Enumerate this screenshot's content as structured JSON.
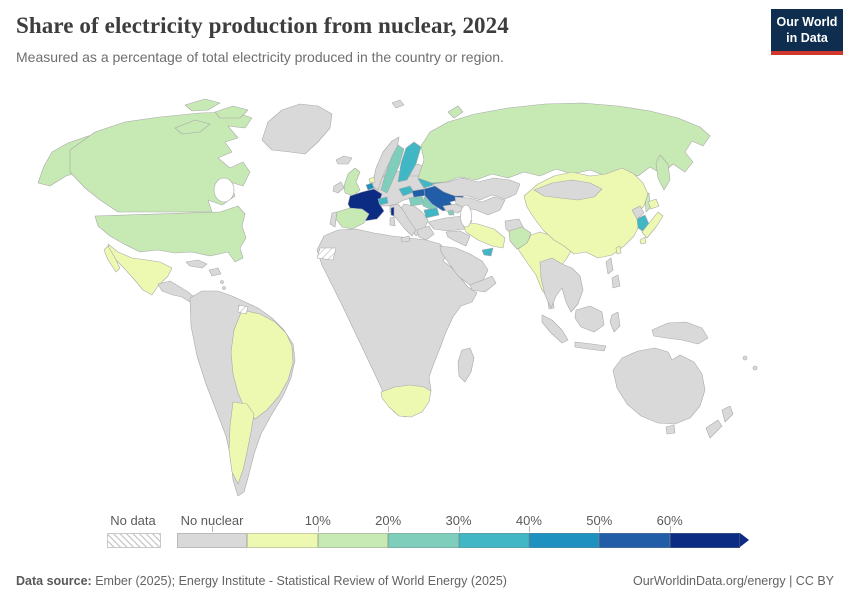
{
  "header": {
    "title": "Share of electricity production from nuclear, 2024",
    "subtitle": "Measured as a percentage of total electricity produced in the country or region."
  },
  "logo": {
    "line1": "Our World",
    "line2": "in Data"
  },
  "legend": {
    "no_data_label": "No data",
    "no_nuclear_label": "No nuclear",
    "ticks": [
      "10%",
      "20%",
      "30%",
      "40%",
      "50%",
      "60%"
    ],
    "segments": [
      {
        "label": "No nuclear",
        "bin": "no-nuclear"
      },
      {
        "label": "",
        "bin": "0-10%"
      },
      {
        "label": "",
        "bin": "10-20%"
      },
      {
        "label": "",
        "bin": "20-30%"
      },
      {
        "label": "",
        "bin": "30-40%"
      },
      {
        "label": "",
        "bin": "40-50%"
      },
      {
        "label": "",
        "bin": "50-60%"
      },
      {
        "label": "",
        "bin": "60%+"
      }
    ]
  },
  "footer": {
    "source_label": "Data source:",
    "source_text": " Ember (2025); Energy Institute - Statistical Review of World Energy (2025)",
    "credit": "OurWorldinData.org/energy | CC BY"
  },
  "map": {
    "palette": {
      "no-data": "hatch",
      "no-nuclear": "#d9d9d9",
      "0-10%": "#edf8b1",
      "10-20%": "#c7e9b4",
      "20-30%": "#7fcdbb",
      "30-40%": "#41b6c4",
      "40-50%": "#1d91c0",
      "50-60%": "#225ea8",
      "60%+": "#0c2c84"
    },
    "sea_color": "#ffffff",
    "border_color": "#a9a9a9"
  },
  "chart_data": {
    "type": "choropleth",
    "title": "Share of electricity production from nuclear, 2024",
    "unit": "% of total electricity production",
    "year": "2024",
    "bins": [
      "No data",
      "No nuclear",
      "0-10%",
      "10-20%",
      "20-30%",
      "30-40%",
      "40-50%",
      "50-60%",
      "60%+"
    ],
    "legend_position": "bottom",
    "countries": [
      {
        "id": "canada",
        "name": "Canada",
        "bin": "10-20%"
      },
      {
        "id": "united-states",
        "name": "United States",
        "bin": "10-20%"
      },
      {
        "id": "greenland",
        "name": "Greenland",
        "bin": "no-nuclear"
      },
      {
        "id": "iceland",
        "name": "Iceland",
        "bin": "no-nuclear"
      },
      {
        "id": "mexico",
        "name": "Mexico",
        "bin": "0-10%"
      },
      {
        "id": "central-america",
        "name": "Central America",
        "bin": "no-nuclear"
      },
      {
        "id": "caribbean",
        "name": "Caribbean",
        "bin": "no-nuclear"
      },
      {
        "id": "south-america-region",
        "name": "South America (other)",
        "bin": "no-nuclear"
      },
      {
        "id": "brazil",
        "name": "Brazil",
        "bin": "0-10%"
      },
      {
        "id": "argentina",
        "name": "Argentina",
        "bin": "0-10%"
      },
      {
        "id": "french-guiana",
        "name": "French Guiana",
        "bin": "no-data"
      },
      {
        "id": "africa-region",
        "name": "Africa (other)",
        "bin": "no-nuclear"
      },
      {
        "id": "western-sahara",
        "name": "Western Sahara",
        "bin": "no-data"
      },
      {
        "id": "south-africa",
        "name": "South Africa",
        "bin": "0-10%"
      },
      {
        "id": "madagascar",
        "name": "Madagascar",
        "bin": "no-nuclear"
      },
      {
        "id": "europe-region",
        "name": "Europe (other)",
        "bin": "no-nuclear"
      },
      {
        "id": "norway",
        "name": "Norway",
        "bin": "no-nuclear"
      },
      {
        "id": "denmark",
        "name": "Denmark",
        "bin": "no-nuclear"
      },
      {
        "id": "ireland",
        "name": "Ireland",
        "bin": "no-nuclear"
      },
      {
        "id": "portugal",
        "name": "Portugal",
        "bin": "no-nuclear"
      },
      {
        "id": "italy",
        "name": "Italy",
        "bin": "no-nuclear"
      },
      {
        "id": "greece",
        "name": "Greece",
        "bin": "no-nuclear"
      },
      {
        "id": "united-kingdom",
        "name": "United Kingdom",
        "bin": "10-20%"
      },
      {
        "id": "spain",
        "name": "Spain",
        "bin": "10-20%"
      },
      {
        "id": "france",
        "name": "France",
        "bin": "60%+"
      },
      {
        "id": "belgium",
        "name": "Belgium",
        "bin": "40-50%"
      },
      {
        "id": "netherlands",
        "name": "Netherlands",
        "bin": "0-10%"
      },
      {
        "id": "switzerland",
        "name": "Switzerland",
        "bin": "30-40%"
      },
      {
        "id": "sweden",
        "name": "Sweden",
        "bin": "20-30%"
      },
      {
        "id": "finland",
        "name": "Finland",
        "bin": "30-40%"
      },
      {
        "id": "czechia",
        "name": "Czechia",
        "bin": "30-40%"
      },
      {
        "id": "slovakia",
        "name": "Slovakia",
        "bin": "50-60%"
      },
      {
        "id": "hungary",
        "name": "Hungary",
        "bin": "20-30%"
      },
      {
        "id": "romania",
        "name": "Romania",
        "bin": "20-30%"
      },
      {
        "id": "bulgaria",
        "name": "Bulgaria",
        "bin": "30-40%"
      },
      {
        "id": "belarus",
        "name": "Belarus",
        "bin": "30-40%"
      },
      {
        "id": "ukraine",
        "name": "Ukraine",
        "bin": "50-60%"
      },
      {
        "id": "turkey",
        "name": "Turkey",
        "bin": "no-nuclear"
      },
      {
        "id": "caucasus",
        "name": "Caucasus (other)",
        "bin": "no-nuclear"
      },
      {
        "id": "armenia",
        "name": "Armenia",
        "bin": "20-30%"
      },
      {
        "id": "russia",
        "name": "Russia",
        "bin": "10-20%"
      },
      {
        "id": "svalbard",
        "name": "Svalbard",
        "bin": "no-nuclear"
      },
      {
        "id": "kazakhstan",
        "name": "Kazakhstan",
        "bin": "no-nuclear"
      },
      {
        "id": "central-asia",
        "name": "Central Asia",
        "bin": "no-nuclear"
      },
      {
        "id": "middle-east",
        "name": "Middle East (other)",
        "bin": "no-nuclear"
      },
      {
        "id": "saudi-arabia",
        "name": "Saudi Arabia",
        "bin": "no-nuclear"
      },
      {
        "id": "iran",
        "name": "Iran",
        "bin": "0-10%"
      },
      {
        "id": "united-arab-emirates",
        "name": "United Arab Emirates",
        "bin": "30-40%"
      },
      {
        "id": "afghanistan",
        "name": "Afghanistan",
        "bin": "no-nuclear"
      },
      {
        "id": "pakistan",
        "name": "Pakistan",
        "bin": "10-20%"
      },
      {
        "id": "india",
        "name": "India",
        "bin": "0-10%"
      },
      {
        "id": "sri-lanka",
        "name": "Sri Lanka",
        "bin": "no-nuclear"
      },
      {
        "id": "china",
        "name": "China",
        "bin": "0-10%"
      },
      {
        "id": "mongolia",
        "name": "Mongolia",
        "bin": "no-nuclear"
      },
      {
        "id": "taiwan",
        "name": "Taiwan",
        "bin": "0-10%"
      },
      {
        "id": "north-korea",
        "name": "North Korea",
        "bin": "no-nuclear"
      },
      {
        "id": "south-korea",
        "name": "South Korea",
        "bin": "30-40%"
      },
      {
        "id": "japan",
        "name": "Japan",
        "bin": "0-10%"
      },
      {
        "id": "southeast-asia",
        "name": "Southeast Asia",
        "bin": "no-nuclear"
      },
      {
        "id": "indonesia",
        "name": "Indonesia",
        "bin": "no-nuclear"
      },
      {
        "id": "philippines",
        "name": "Philippines",
        "bin": "no-nuclear"
      },
      {
        "id": "papua-new-guinea",
        "name": "Papua New Guinea",
        "bin": "no-nuclear"
      },
      {
        "id": "pacific-islands",
        "name": "Pacific Islands",
        "bin": "no-nuclear"
      },
      {
        "id": "australia",
        "name": "Australia",
        "bin": "no-nuclear"
      },
      {
        "id": "new-zealand",
        "name": "New Zealand",
        "bin": "no-nuclear"
      }
    ]
  }
}
